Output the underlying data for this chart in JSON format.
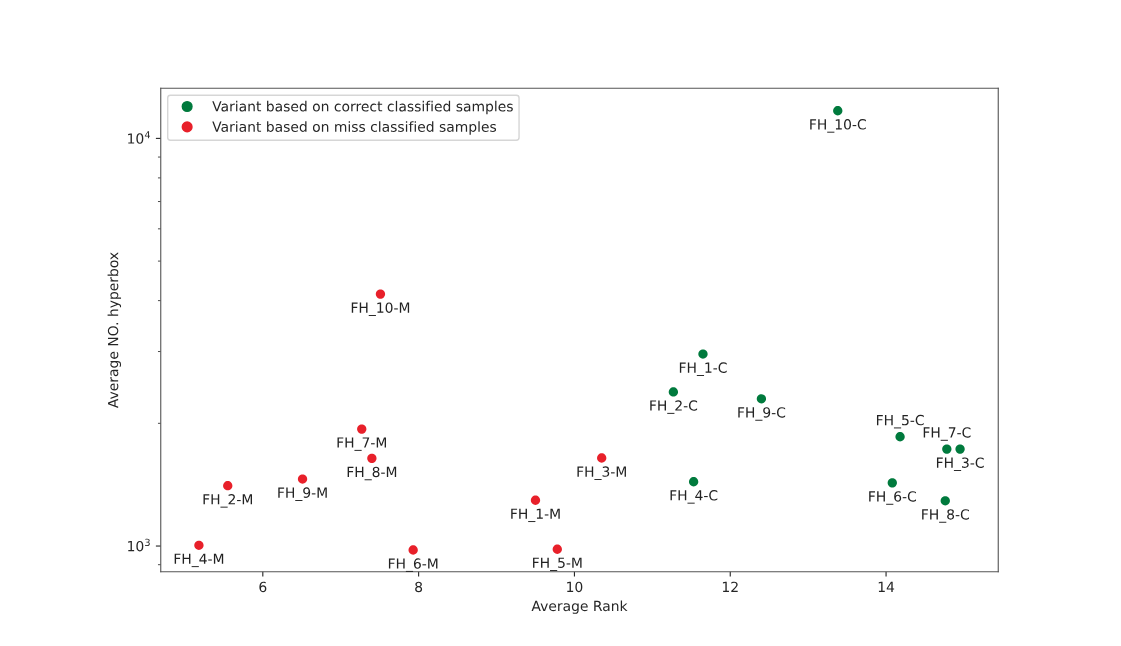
{
  "chart_data": {
    "type": "scatter",
    "xlabel": "Average Rank",
    "ylabel": "Average NO. hyperbox",
    "log": "y",
    "legend": "top left",
    "marker": "circle",
    "grid": false,
    "xlim": [
      4.69,
      15.44
    ],
    "xticks": [
      6,
      8,
      10,
      12,
      14
    ],
    "ylim": [
      865,
      13270
    ],
    "yticks": [
      {
        "value": 1000,
        "label": "10$^{3}$"
      },
      {
        "value": 10000,
        "label": "10$^{4}$"
      }
    ],
    "series": [
      {
        "name": "Variant based on correct classified samples",
        "color": "#007a3d",
        "x": [
          11.65,
          11.27,
          14.95,
          11.53,
          14.18,
          14.08,
          14.78,
          14.76,
          12.4,
          13.38
        ],
        "values": [
          2958,
          2388,
          1729,
          1438,
          1854,
          1429,
          1729,
          1291,
          2297,
          11690
        ]
      },
      {
        "name": "Variant based on miss classified samples",
        "color": "#e8202a",
        "x": [
          9.5,
          5.55,
          10.35,
          5.18,
          9.78,
          7.93,
          7.27,
          7.4,
          6.51,
          7.51
        ],
        "values": [
          1295,
          1406,
          1644,
          1004,
          982,
          978,
          1936,
          1641,
          1460,
          4150
        ]
      }
    ],
    "annotations": [
      {
        "text": "FH_1-C",
        "x": 11.65,
        "y": 2958
      },
      {
        "text": "FH_2-C",
        "x": 11.27,
        "y": 2388
      },
      {
        "text": "FH_3-C",
        "x": 14.95,
        "y": 1729
      },
      {
        "text": "FH_4-C",
        "x": 11.53,
        "y": 1438
      },
      {
        "text": "FH_5-C",
        "x": 14.18,
        "y": 1854
      },
      {
        "text": "FH_6-C",
        "x": 14.08,
        "y": 1429
      },
      {
        "text": "FH_7-C",
        "x": 14.78,
        "y": 1729
      },
      {
        "text": "FH_8-C",
        "x": 14.76,
        "y": 1291
      },
      {
        "text": "FH_9-C",
        "x": 12.4,
        "y": 2297
      },
      {
        "text": "FH_10-C",
        "x": 13.38,
        "y": 11690
      },
      {
        "text": "FH_1-M",
        "x": 9.5,
        "y": 1295
      },
      {
        "text": "FH_2-M",
        "x": 5.55,
        "y": 1406
      },
      {
        "text": "FH_3-M",
        "x": 10.35,
        "y": 1644
      },
      {
        "text": "FH_4-M",
        "x": 5.18,
        "y": 1004
      },
      {
        "text": "FH_5-M",
        "x": 9.78,
        "y": 982
      },
      {
        "text": "FH_6-M",
        "x": 7.93,
        "y": 978
      },
      {
        "text": "FH_7-M",
        "x": 7.27,
        "y": 1936
      },
      {
        "text": "FH_8-M",
        "x": 7.4,
        "y": 1641
      },
      {
        "text": "FH_9-M",
        "x": 6.51,
        "y": 1460
      },
      {
        "text": "FH_10-M",
        "x": 7.51,
        "y": 4150
      }
    ]
  }
}
